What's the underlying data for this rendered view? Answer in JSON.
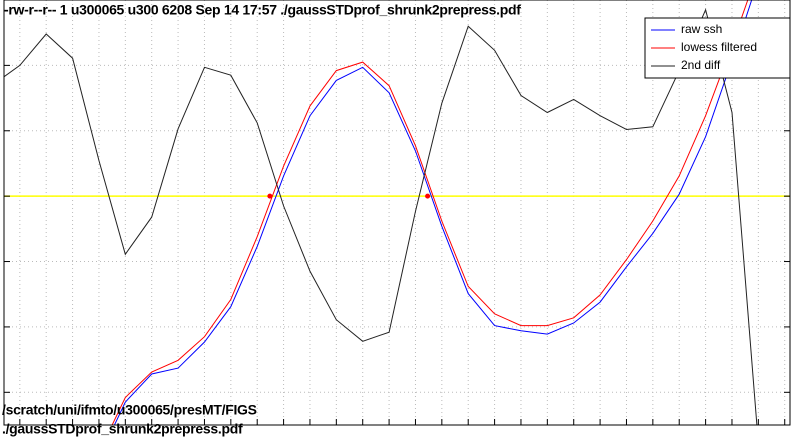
{
  "chart_data": {
    "type": "line",
    "header": "-rw-r--r-- 1 u300065 u300 6208 Sep 14 17:57 ./gaussSTDprof_shrunk2prepress.pdf",
    "footer": [
      "/scratch/uni/ifmto/u300065/presMT/FIGS",
      "./gaussSTDprof_shrunk2prepress.pdf"
    ],
    "xlim": [
      -0.6,
      29.2
    ],
    "ylim": [
      -3.5,
      3
    ],
    "xticks": [
      0,
      1,
      2,
      3,
      4,
      5,
      6,
      7,
      8,
      9,
      10,
      11,
      12,
      13,
      14,
      15,
      16,
      17,
      18,
      19,
      20,
      21,
      22,
      23,
      24,
      25,
      26,
      27,
      28,
      29
    ],
    "yticks": [
      -3,
      -2,
      -1,
      0,
      1,
      2,
      3
    ],
    "grid": true,
    "legend": "upper right",
    "hline": {
      "value": 0,
      "color": "#ffff00"
    },
    "crossings": {
      "x": [
        9.48,
        15.46
      ],
      "y": [
        0,
        0
      ],
      "color": "#ff0000"
    },
    "series": [
      {
        "name": "raw ssh",
        "color": "#0000ff",
        "x": [
          3,
          4,
          5,
          6,
          7,
          8,
          9,
          10,
          11,
          12,
          13,
          14,
          15,
          16,
          17,
          18,
          19,
          20,
          21,
          22,
          23,
          24,
          25,
          26,
          27,
          28
        ],
        "values": [
          -4.0,
          -3.15,
          -2.72,
          -2.63,
          -2.23,
          -1.69,
          -0.77,
          0.31,
          1.23,
          1.77,
          1.97,
          1.58,
          0.69,
          -0.46,
          -1.49,
          -1.98,
          -2.06,
          -2.11,
          -1.94,
          -1.62,
          -1.08,
          -0.57,
          0.03,
          0.91,
          2.08,
          3.31
        ]
      },
      {
        "name": "lowess filtered",
        "color": "#ff0000",
        "x": [
          3,
          4,
          5,
          6,
          7,
          8,
          9,
          10,
          11,
          12,
          13,
          14,
          15,
          16,
          17,
          18,
          19,
          20,
          21,
          22,
          23,
          24,
          25,
          26,
          27,
          28
        ],
        "values": [
          -3.92,
          -3.08,
          -2.69,
          -2.51,
          -2.15,
          -1.58,
          -0.62,
          0.46,
          1.38,
          1.92,
          2.05,
          1.69,
          0.77,
          -0.38,
          -1.38,
          -1.8,
          -1.98,
          -1.98,
          -1.86,
          -1.51,
          -0.97,
          -0.38,
          0.31,
          1.23,
          2.31,
          3.46
        ]
      },
      {
        "name": "2nd diff",
        "color": "#222222",
        "x": [
          -1,
          0,
          1,
          2,
          3,
          4,
          5,
          6,
          7,
          8,
          9,
          10,
          11,
          12,
          13,
          14,
          15,
          16,
          17,
          18,
          19,
          20,
          21,
          22,
          23,
          24,
          25,
          26,
          27,
          28
        ],
        "values": [
          1.71,
          2.0,
          2.48,
          2.11,
          0.54,
          -0.89,
          -0.32,
          1.03,
          1.97,
          1.85,
          1.12,
          -0.15,
          -1.15,
          -1.89,
          -2.22,
          -2.08,
          -0.23,
          1.42,
          2.6,
          2.23,
          1.54,
          1.28,
          1.48,
          1.23,
          1.02,
          1.06,
          1.92,
          2.85,
          1.28,
          -3.77
        ]
      }
    ]
  }
}
